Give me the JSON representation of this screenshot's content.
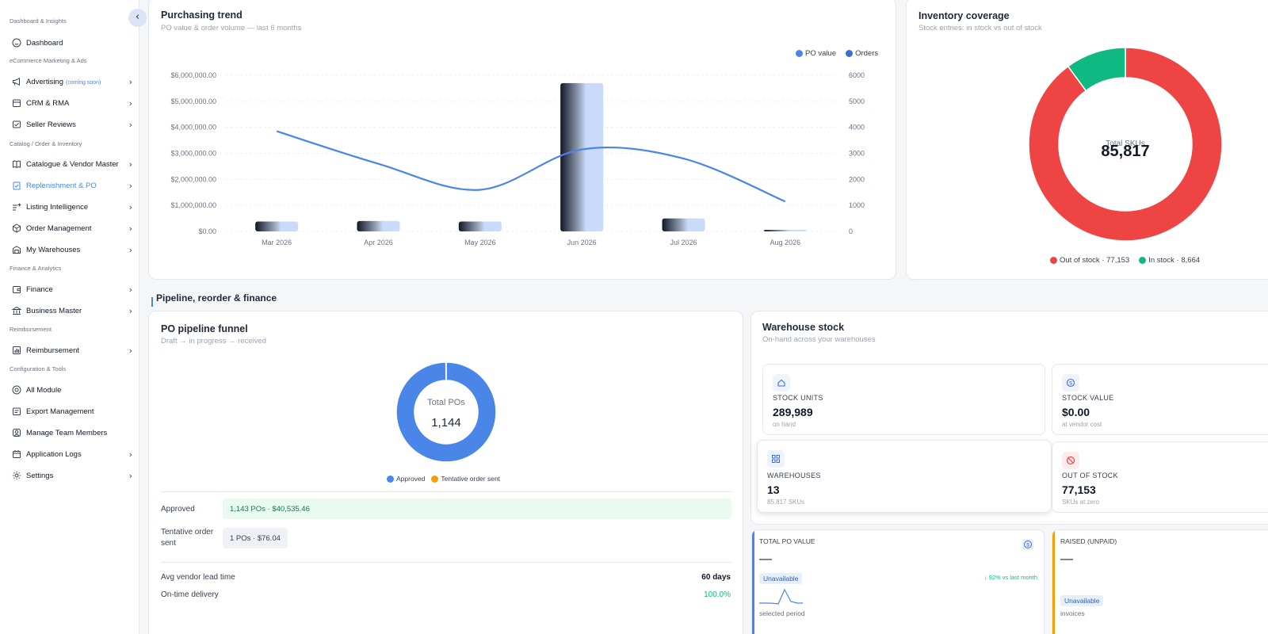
{
  "sidebar": {
    "collapse_icon": "chevron-left-icon",
    "sections": [
      {
        "title": "Dashboard & Insights",
        "items": [
          {
            "label": "Dashboard",
            "icon": "smile-icon",
            "chevron": false
          }
        ]
      },
      {
        "title": "eCommerce Marketing & Ads",
        "items": [
          {
            "label": "Advertising",
            "badge": "(coming soon)",
            "icon": "megaphone-icon",
            "chevron": true
          },
          {
            "label": "CRM & RMA",
            "icon": "box-icon",
            "chevron": true
          },
          {
            "label": "Seller Reviews",
            "icon": "review-icon",
            "chevron": true
          }
        ]
      },
      {
        "title": "Catalog / Order & Inventory",
        "items": [
          {
            "label": "Catalogue & Vendor Master",
            "icon": "book-icon",
            "chevron": true
          },
          {
            "label": "Replenishment & PO",
            "icon": "clipboard-check-icon",
            "chevron": true,
            "active": true
          },
          {
            "label": "Listing Intelligence",
            "icon": "sparkle-list-icon",
            "chevron": true
          },
          {
            "label": "Order Management",
            "icon": "cube-icon",
            "chevron": true
          },
          {
            "label": "My Warehouses",
            "icon": "warehouse-icon",
            "chevron": true
          }
        ]
      },
      {
        "title": "Finance & Analytics",
        "items": [
          {
            "label": "Finance",
            "icon": "wallet-icon",
            "chevron": true
          },
          {
            "label": "Business Master",
            "icon": "bank-icon",
            "chevron": true
          }
        ]
      },
      {
        "title": "Reimbursement",
        "items": [
          {
            "label": "Reimbursement",
            "icon": "chart-icon",
            "chevron": true
          }
        ]
      },
      {
        "title": "Configuration & Tools",
        "items": [
          {
            "label": "All Module",
            "icon": "target-icon",
            "chevron": false
          },
          {
            "label": "Export Management",
            "icon": "export-icon",
            "chevron": false
          },
          {
            "label": "Manage Team Members",
            "icon": "user-icon",
            "chevron": false
          },
          {
            "label": "Application Logs",
            "icon": "calendar-icon",
            "chevron": true
          },
          {
            "label": "Settings",
            "icon": "gear-icon",
            "chevron": true
          }
        ]
      }
    ]
  },
  "purchasing_trend": {
    "title": "Purchasing trend",
    "subtitle": "PO value & order volume — last 6 months"
  },
  "inventory_coverage": {
    "title": "Inventory coverage",
    "subtitle": "Stock entries: in stock vs out of stock",
    "center_label": "Total SKUs",
    "center_value": "85,817",
    "legend": [
      {
        "label": "Out of stock · 77,153",
        "color": "#ef4444"
      },
      {
        "label": "In stock · 8,664",
        "color": "#10b981"
      }
    ]
  },
  "section_header": "Pipeline, reorder & finance",
  "po_funnel": {
    "title": "PO pipeline funnel",
    "subtitle": "Draft → in progress → received",
    "center_label": "Total POs",
    "center_value": "1,144",
    "legend": [
      {
        "label": "Approved",
        "color": "#4a86e8"
      },
      {
        "label": "Tentative order sent",
        "color": "#f59e0b"
      }
    ],
    "rows": [
      {
        "label": "Approved",
        "value": "1,143 POs · $40,535.46"
      },
      {
        "label": "Tentative order sent",
        "value": "1 POs · $76.04"
      }
    ],
    "metrics": [
      {
        "label": "Avg vendor lead time",
        "value": "60 days"
      },
      {
        "label": "On-time delivery",
        "value": "100.0%"
      }
    ]
  },
  "warehouse_stock": {
    "title": "Warehouse stock",
    "subtitle": "On-hand across your warehouses",
    "tiles": [
      {
        "label": "STOCK UNITS",
        "value": "289,989",
        "sub": "on hand",
        "icon": "home-icon"
      },
      {
        "label": "STOCK VALUE",
        "value": "$0.00",
        "sub": "at vendor cost",
        "icon": "dollar-icon"
      },
      {
        "label": "WAREHOUSES",
        "value": "13",
        "sub": "85,817 SKUs",
        "icon": "grid-icon"
      },
      {
        "label": "OUT OF STOCK",
        "value": "77,153",
        "sub": "SKUs at zero",
        "icon": "ban-icon"
      }
    ]
  },
  "kpis": [
    {
      "label": "TOTAL PO VALUE",
      "value": "—",
      "badge": "Unavailable",
      "trend": "↓ 92% vs last month",
      "foot": "selected period",
      "accent": "#4a86e8"
    },
    {
      "label": "RAISED (UNPAID)",
      "value": "—",
      "badge": "Unavailable",
      "foot": "invoices",
      "accent": "#f59e0b"
    }
  ],
  "chart_data": [
    {
      "type": "bar",
      "title": "Purchasing trend",
      "categories": [
        "Mar 2026",
        "Apr 2026",
        "May 2026",
        "Jun 2026",
        "Jul 2026",
        "Aug 2026"
      ],
      "series": [
        {
          "name": "PO value",
          "type": "line",
          "axis": "left",
          "color": "#4a86e8",
          "values": [
            3850000,
            2600000,
            1600000,
            3150000,
            2800000,
            1150000
          ]
        },
        {
          "name": "Orders",
          "type": "bar",
          "axis": "right",
          "color": "#3b6fd8",
          "values": [
            380,
            400,
            380,
            5700,
            500,
            40
          ]
        }
      ],
      "y_left": {
        "ticks": [
          "$0.00",
          "$1,000,000.00",
          "$2,000,000.00",
          "$3,000,000.00",
          "$4,000,000.00",
          "$5,000,000.00",
          "$6,000,000.00"
        ],
        "ylim": [
          0,
          6000000
        ]
      },
      "y_right": {
        "ticks": [
          "0",
          "1000",
          "2000",
          "3000",
          "4000",
          "5000",
          "6000"
        ],
        "ylim": [
          0,
          6000
        ]
      },
      "legend_position": "top-right",
      "grid": true
    },
    {
      "type": "pie",
      "title": "Inventory coverage",
      "labels": [
        "Out of stock",
        "In stock"
      ],
      "values": [
        77153,
        8664
      ],
      "colors": [
        "#ef4444",
        "#10b981"
      ],
      "donut": true
    },
    {
      "type": "pie",
      "title": "PO pipeline funnel",
      "labels": [
        "Approved",
        "Tentative order sent"
      ],
      "values": [
        1143,
        1
      ],
      "colors": [
        "#4a86e8",
        "#f59e0b"
      ],
      "donut": true
    }
  ]
}
